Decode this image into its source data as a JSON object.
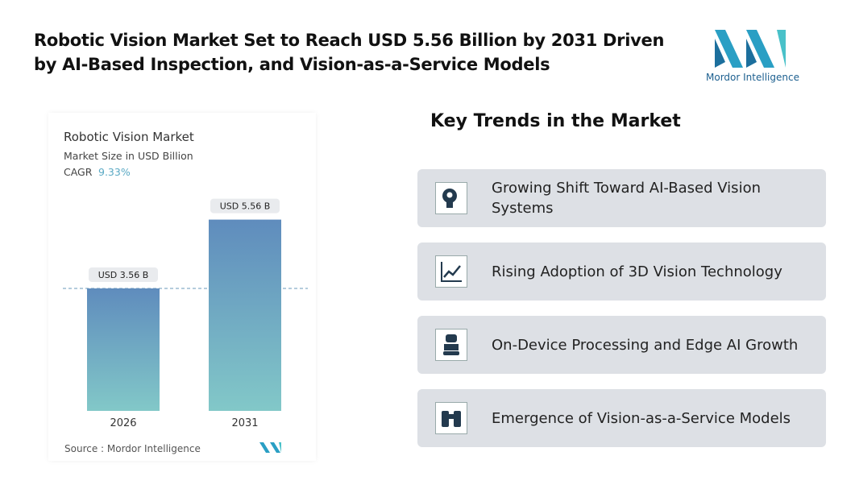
{
  "header": {
    "title_line_1": "Robotic Vision Market Set to Reach USD 5.56 Billion by 2031 Driven",
    "title_line_2": "by AI-Based Inspection, and Vision-as-a-Service Models",
    "logo_text": "Mordor Intelligence"
  },
  "chart_data": {
    "type": "bar",
    "title": "Robotic Vision Market",
    "subtitle": "Market Size in USD Billion",
    "cagr_label": "CAGR",
    "cagr_value": "9.33%",
    "categories": [
      "2026",
      "2031"
    ],
    "values": [
      3.56,
      5.56
    ],
    "value_labels": [
      "USD 3.56 B",
      "USD 5.56 B"
    ],
    "source": "Source : Mordor Intelligence"
  },
  "trends": {
    "heading": "Key Trends in the Market",
    "items": [
      "Growing Shift Toward AI-Based Vision Systems",
      "Rising Adoption of 3D Vision Technology",
      "On-Device Processing and Edge AI Growth",
      "Emergence of Vision-as-a-Service Models"
    ]
  }
}
